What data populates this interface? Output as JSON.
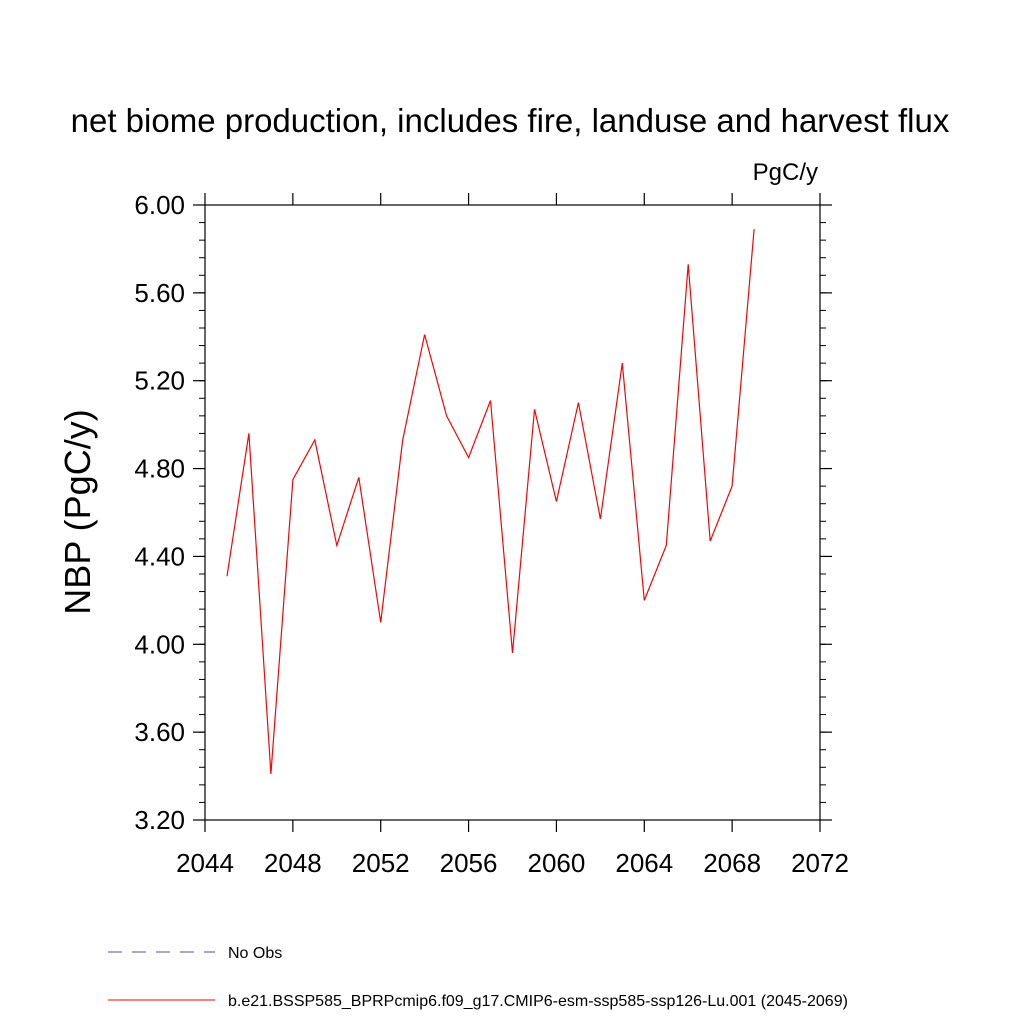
{
  "chart_data": {
    "type": "line",
    "title": "net biome production, includes fire, landuse and harvest flux",
    "units_label": "PgC/y",
    "ylabel": "NBP  (PgC/y)",
    "xlabel": "",
    "xlim": [
      2044,
      2072
    ],
    "ylim": [
      3.2,
      6.0
    ],
    "x_ticks": [
      2044,
      2048,
      2052,
      2056,
      2060,
      2064,
      2068,
      2072
    ],
    "x_tick_labels": [
      "2044",
      "2048",
      "2052",
      "2056",
      "2060",
      "2064",
      "2068",
      "2072"
    ],
    "y_ticks": [
      3.2,
      3.6,
      4.0,
      4.4,
      4.8,
      5.2,
      5.6,
      6.0
    ],
    "y_tick_labels": [
      "3.20",
      "3.60",
      "4.00",
      "4.40",
      "4.80",
      "5.20",
      "5.60",
      "6.00"
    ],
    "grid": false,
    "legend_position": "bottom-left",
    "series": [
      {
        "name": "No Obs",
        "color": "#5a4e9c",
        "dash": true,
        "x": [],
        "y": []
      },
      {
        "name": "b.e21.BSSP585_BPRPcmip6.f09_g17.CMIP6-esm-ssp585-ssp126-Lu.001 (2045-2069)",
        "color": "#ff0000",
        "dash": false,
        "x": [
          2045,
          2046,
          2047,
          2048,
          2049,
          2050,
          2051,
          2052,
          2053,
          2054,
          2055,
          2056,
          2057,
          2058,
          2059,
          2060,
          2061,
          2062,
          2063,
          2064,
          2065,
          2066,
          2067,
          2068,
          2069
        ],
        "y": [
          4.31,
          4.96,
          3.41,
          4.75,
          4.93,
          4.45,
          4.76,
          4.1,
          4.93,
          5.41,
          5.04,
          4.85,
          5.11,
          3.96,
          5.07,
          4.65,
          5.1,
          4.57,
          5.28,
          4.2,
          4.45,
          5.73,
          4.47,
          4.72,
          5.89
        ]
      }
    ]
  }
}
